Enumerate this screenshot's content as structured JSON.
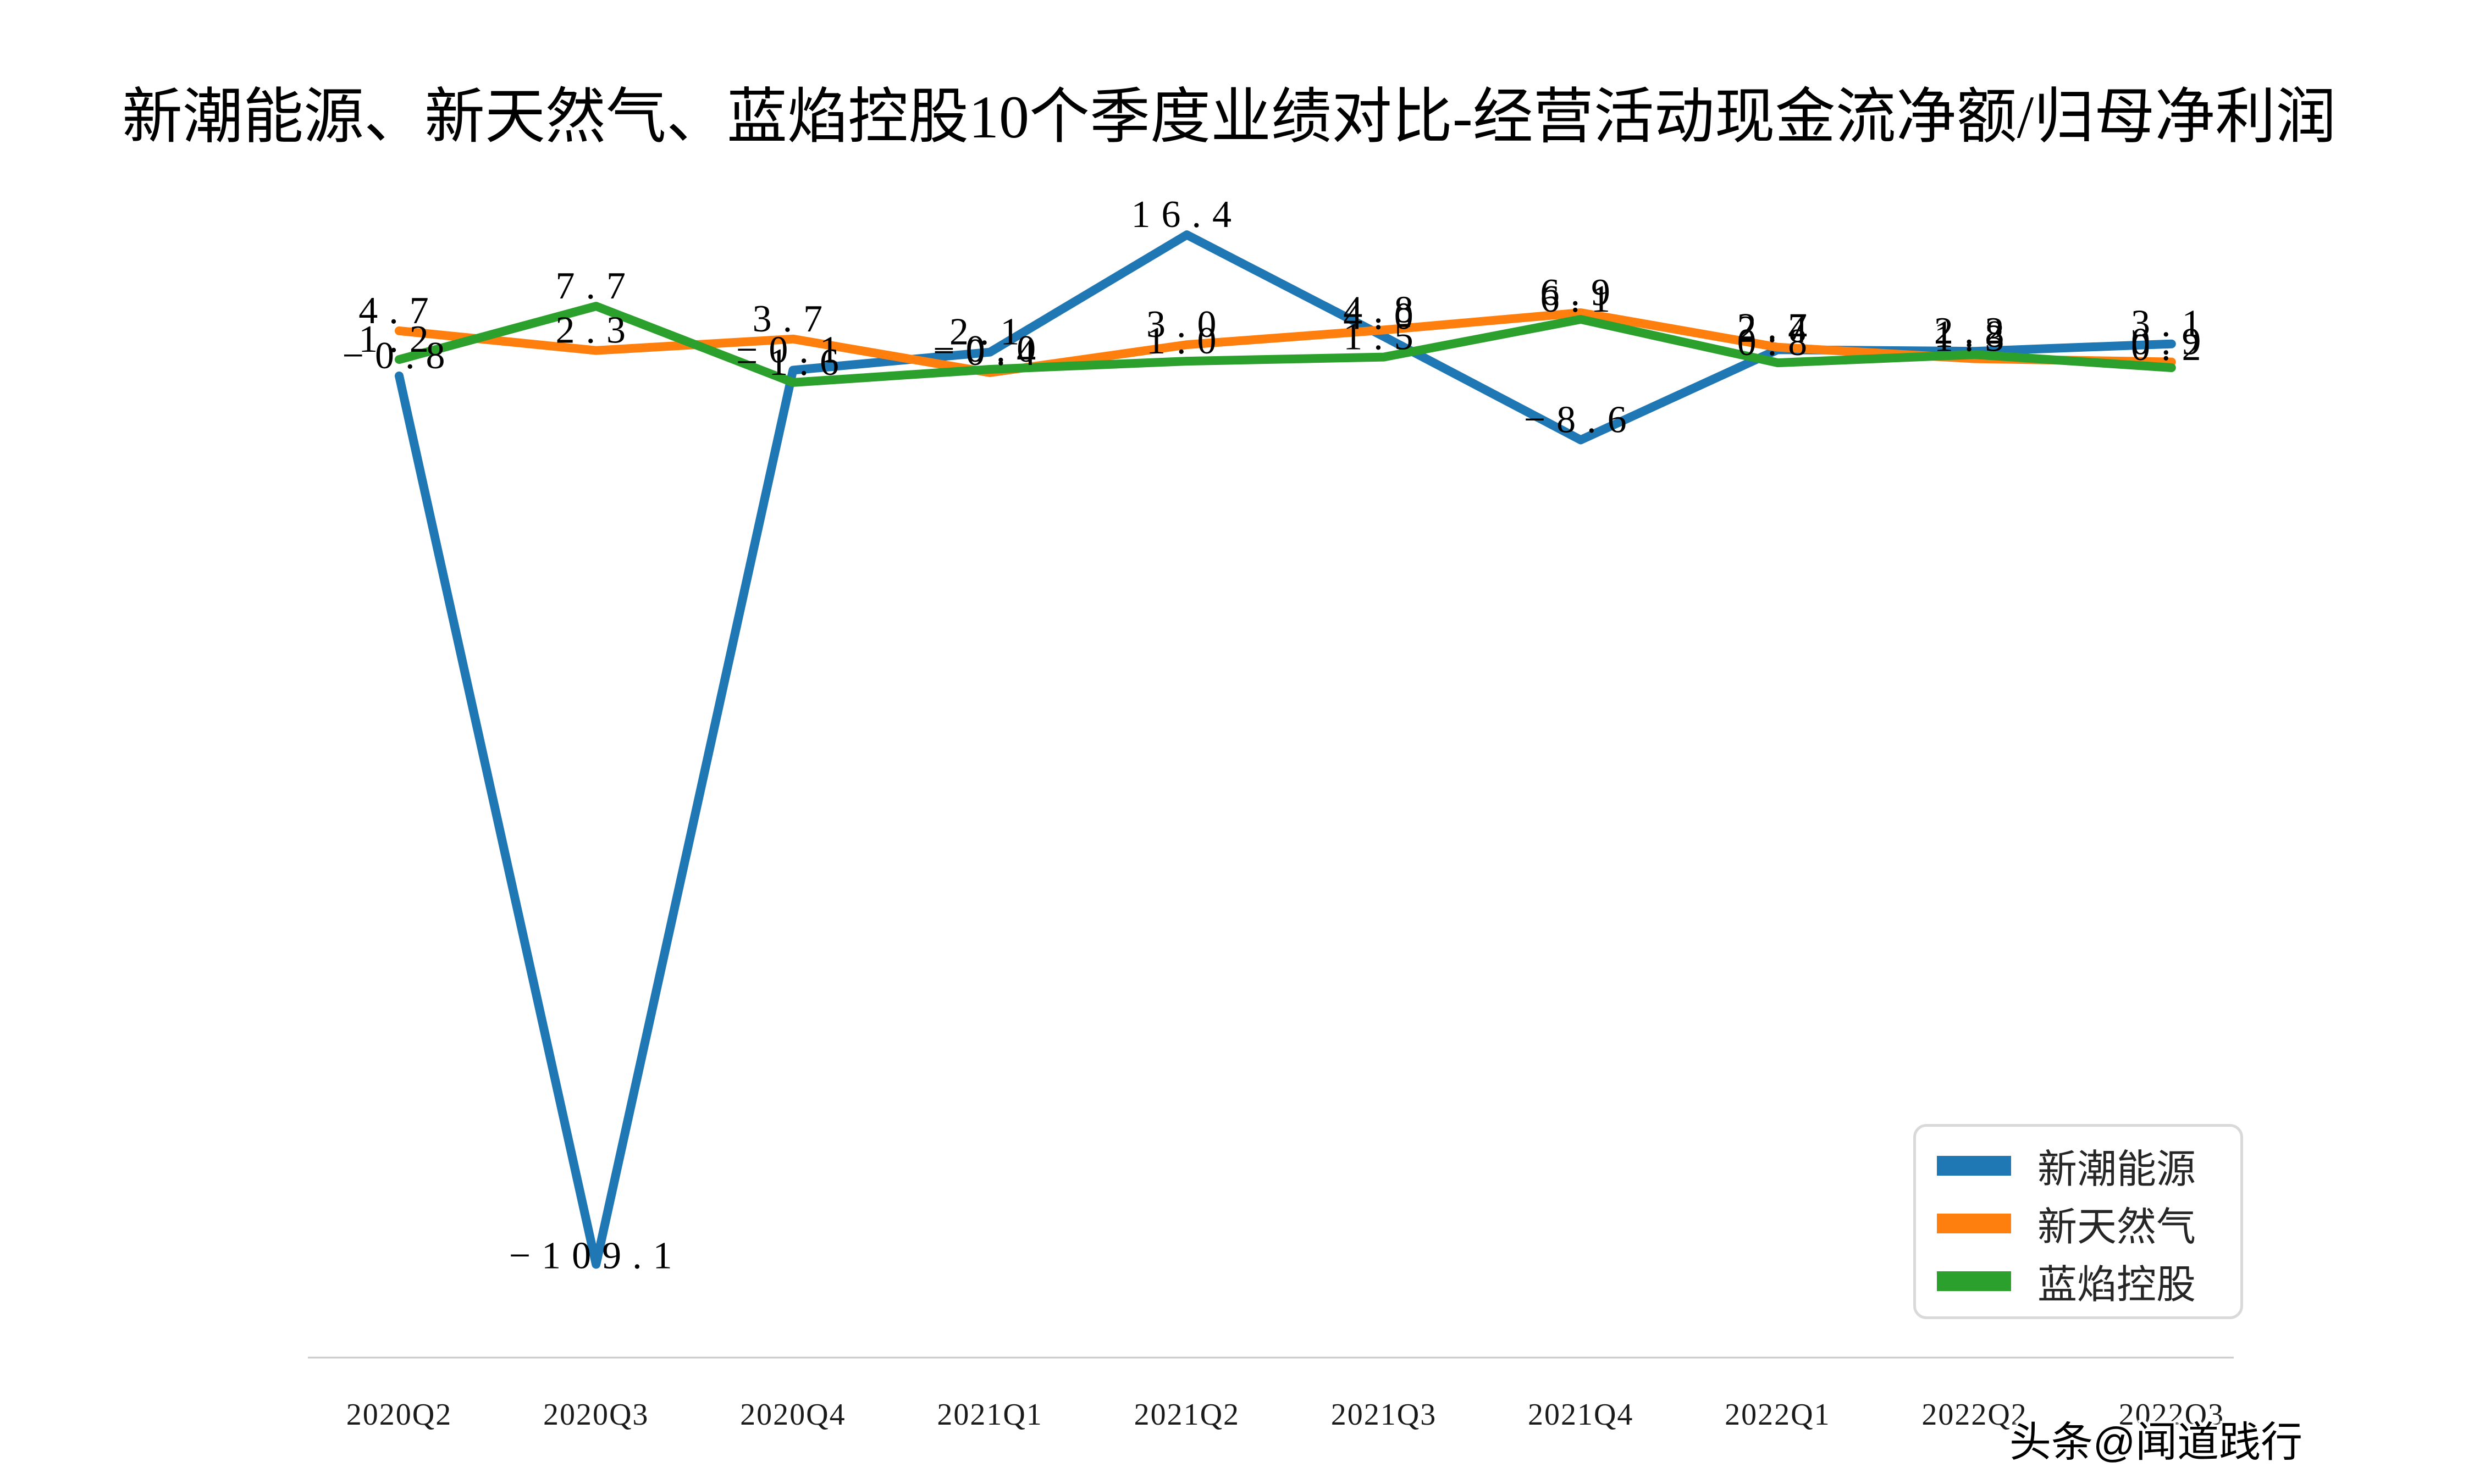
{
  "title": "新潮能源、新天然气、蓝焰控股10个季度业绩对比-经营活动现金流净额/归母净利润",
  "watermark": "头条@闻道践行",
  "colors": {
    "blue": "#1f77b4",
    "orange": "#ff7f0e",
    "green": "#2ca02c",
    "axis_line": "#c9c9c9",
    "data_label": "#000000",
    "tick_label": "#1a1a1a",
    "legend_border": "#d9d9d9",
    "legend_text": "#262626"
  },
  "chart_data": {
    "type": "line",
    "title": "新潮能源、新天然气、蓝焰控股10个季度业绩对比-经营活动现金流净额/归母净利润",
    "categories": [
      "2020Q2",
      "2020Q3",
      "2020Q4",
      "2021Q1",
      "2021Q2",
      "2021Q3",
      "2021Q4",
      "2022Q1",
      "2022Q2",
      "2022Q3"
    ],
    "series": [
      {
        "name": "新潮能源",
        "color_key": "blue",
        "values": [
          -0.8,
          -109.1,
          -0.1,
          2.1,
          16.4,
          4.0,
          -8.6,
          2.4,
          2.2,
          3.1
        ],
        "labels": [
          "−0.8",
          "−109.1",
          "−0.1",
          "2.1",
          "16.4",
          "4.0",
          "−8.6",
          "2.4",
          "2.2",
          "3.1"
        ],
        "label_extra_dy": [
          0,
          21,
          0,
          0,
          0,
          0,
          0,
          0,
          0,
          0
        ]
      },
      {
        "name": "新天然气",
        "color_key": "orange",
        "values": [
          4.7,
          2.3,
          3.7,
          -0.4,
          3.0,
          4.8,
          6.9,
          2.7,
          1.3,
          0.9
        ],
        "labels": [
          "4.7",
          "2.3",
          "3.7",
          "−0.4",
          "3.0",
          "4.8",
          "6.9",
          "2.7",
          "1.3",
          "0.9"
        ],
        "label_extra_dy": [
          0,
          0,
          0,
          0,
          0,
          0,
          0,
          0,
          0,
          0
        ]
      },
      {
        "name": "蓝焰控股",
        "color_key": "green",
        "values": [
          1.2,
          7.7,
          -1.6,
          -0.0,
          1.0,
          1.5,
          6.1,
          0.8,
          1.8,
          0.2
        ],
        "labels": [
          "1.2",
          "7.7",
          "−1.6",
          "−0.0",
          "1.0",
          "1.5",
          "6.1",
          "0.8",
          "1.8",
          "0.2"
        ],
        "label_extra_dy": [
          0,
          0,
          0,
          0,
          0,
          0,
          0,
          0,
          0,
          0
        ]
      }
    ],
    "xlabel": "",
    "ylabel": "",
    "grid": false,
    "y_axis_visible": false,
    "legend_position": "lower right"
  },
  "legend": {
    "items": [
      {
        "label": "新潮能源",
        "color_key": "blue"
      },
      {
        "label": "新天然气",
        "color_key": "orange"
      },
      {
        "label": "蓝焰控股",
        "color_key": "green"
      }
    ]
  }
}
